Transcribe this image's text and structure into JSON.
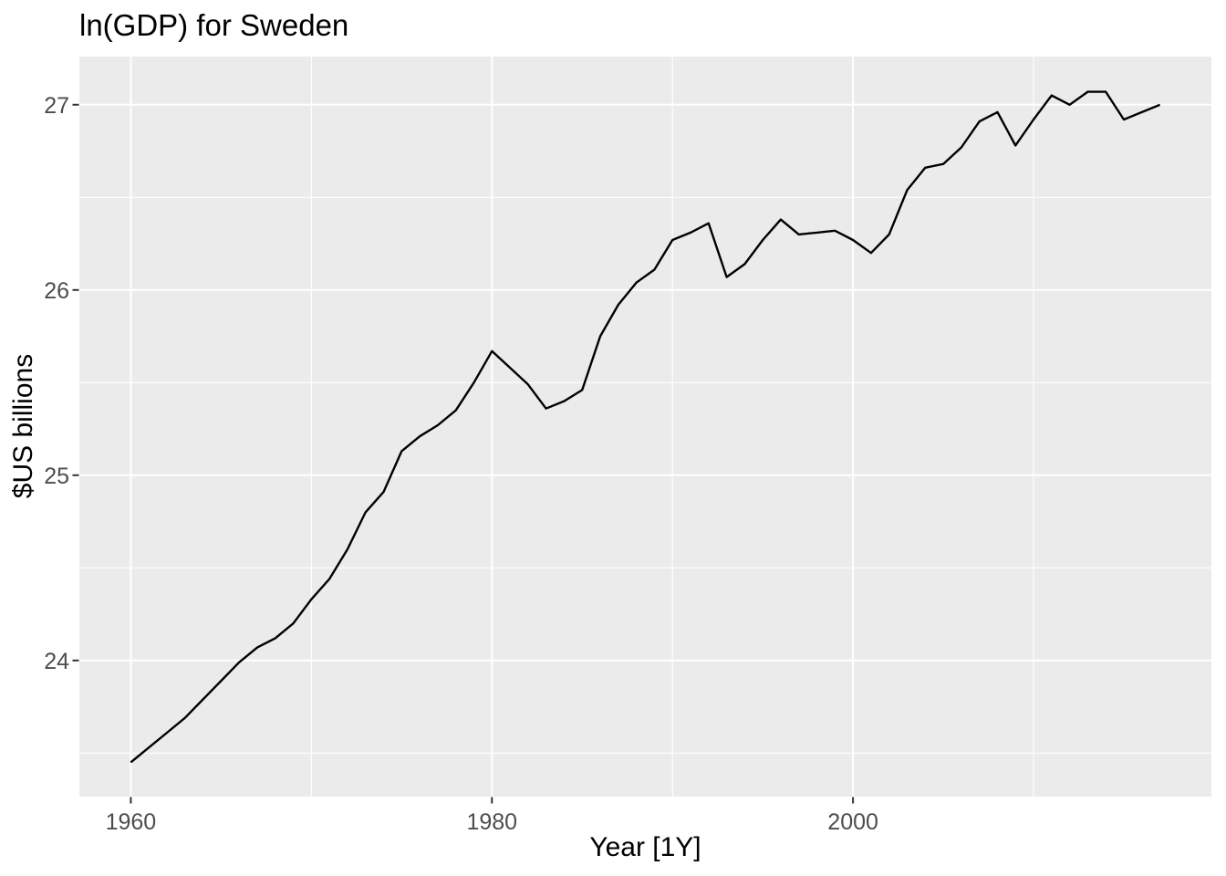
{
  "chart_data": {
    "type": "line",
    "title": "ln(GDP) for Sweden",
    "xlabel": "Year [1Y]",
    "ylabel": "$US billions",
    "x": [
      1960,
      1961,
      1962,
      1963,
      1964,
      1965,
      1966,
      1967,
      1968,
      1969,
      1970,
      1971,
      1972,
      1973,
      1974,
      1975,
      1976,
      1977,
      1978,
      1979,
      1980,
      1981,
      1982,
      1983,
      1984,
      1985,
      1986,
      1987,
      1988,
      1989,
      1990,
      1991,
      1992,
      1993,
      1994,
      1995,
      1996,
      1997,
      1998,
      1999,
      2000,
      2001,
      2002,
      2003,
      2004,
      2005,
      2006,
      2007,
      2008,
      2009,
      2010,
      2011,
      2012,
      2013,
      2014,
      2015,
      2016,
      2017
    ],
    "values": [
      23.45,
      23.53,
      23.61,
      23.69,
      23.79,
      23.89,
      23.99,
      24.07,
      24.12,
      24.2,
      24.33,
      24.44,
      24.6,
      24.8,
      24.91,
      25.13,
      25.21,
      25.27,
      25.35,
      25.5,
      25.67,
      25.58,
      25.49,
      25.36,
      25.4,
      25.46,
      25.75,
      25.92,
      26.04,
      26.11,
      26.27,
      26.31,
      26.36,
      26.07,
      26.14,
      26.27,
      26.38,
      26.3,
      26.31,
      26.32,
      26.27,
      26.2,
      26.3,
      26.54,
      26.66,
      26.68,
      26.77,
      26.91,
      26.96,
      26.78,
      26.92,
      27.05,
      27.0,
      27.07,
      27.07,
      26.92,
      26.96,
      27.0
    ],
    "xlim": [
      1957.15,
      2019.85
    ],
    "ylim": [
      23.265,
      27.26
    ],
    "x_ticks": [
      1960,
      1980,
      2000
    ],
    "x_minor_ticks": [
      1970,
      1990,
      2010
    ],
    "y_ticks": [
      24,
      25,
      26,
      27
    ],
    "y_minor_ticks": [
      23.5,
      24.5,
      25.5,
      26.5
    ],
    "grid": "major+minor",
    "legend": "none",
    "style": {
      "line_color": "#000000",
      "panel_bg": "#EBEBEB",
      "grid_color": "#FFFFFF",
      "tick_mark_color": "#333333",
      "tick_label_color": "#4D4D4D",
      "title_color": "#000000"
    }
  }
}
